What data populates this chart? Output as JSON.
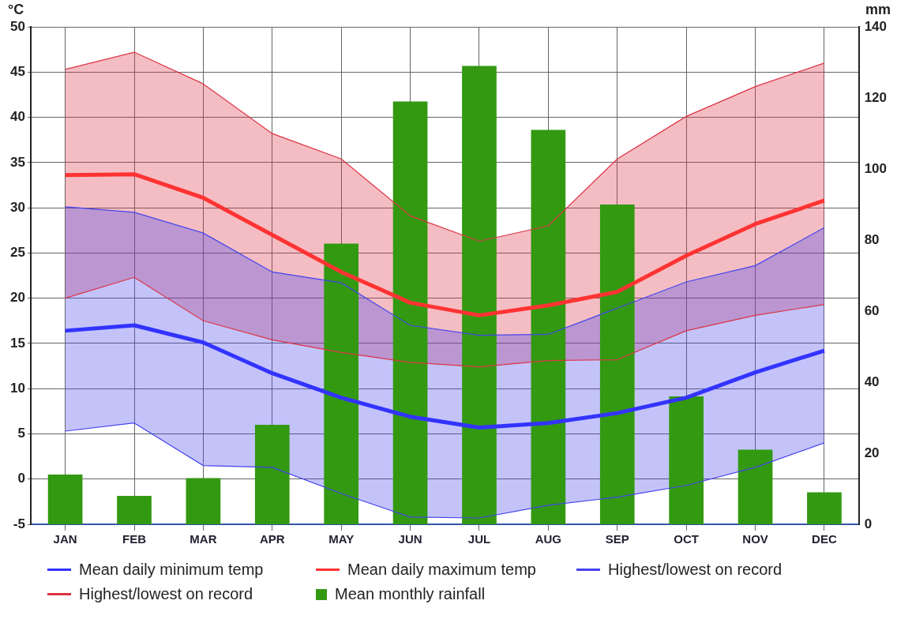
{
  "chart_data": {
    "type": "line",
    "ylabel": "°C",
    "y2label": "mm",
    "categories": [
      "JAN",
      "FEB",
      "MAR",
      "APR",
      "MAY",
      "JUN",
      "JUL",
      "AUG",
      "SEP",
      "OCT",
      "NOV",
      "DEC"
    ],
    "series": [
      {
        "name": "Mean daily minimum temp",
        "color": "#3333ff",
        "values": [
          16.4,
          17.0,
          15.1,
          11.7,
          9.0,
          6.9,
          5.7,
          6.2,
          7.3,
          9.0,
          11.8,
          14.2
        ]
      },
      {
        "name": "Mean daily maximum temp",
        "color": "#ff3333",
        "values": [
          33.6,
          33.7,
          31.1,
          27.0,
          22.9,
          19.5,
          18.1,
          19.2,
          20.7,
          24.7,
          28.2,
          30.8
        ]
      },
      {
        "name": "Highest/lowest on record",
        "color": "#4444ee",
        "type": "line",
        "lower": [
          5.3,
          6.2,
          1.5,
          1.3,
          -1.6,
          -4.2,
          -4.3,
          -2.9,
          -2.0,
          -0.7,
          1.3,
          4.0
        ],
        "upper": [
          30.1,
          29.5,
          27.2,
          22.9,
          21.7,
          17.0,
          15.9,
          16.0,
          18.9,
          21.8,
          23.6,
          27.8
        ],
        "values": [
          30.1,
          29.5,
          27.2,
          22.9,
          21.7,
          17.0,
          15.9,
          16.0,
          18.9,
          21.8,
          23.6,
          27.8
        ]
      },
      {
        "name": "Highest/lowest on record",
        "color": "#dd3344",
        "type": "line",
        "lower": [
          20.0,
          22.3,
          17.5,
          15.4,
          14.0,
          12.9,
          12.4,
          13.1,
          13.2,
          16.4,
          18.1,
          19.3
        ],
        "upper": [
          45.3,
          47.2,
          43.7,
          38.2,
          35.4,
          29.1,
          26.3,
          28.0,
          35.4,
          40.1,
          43.4,
          46.0
        ],
        "values": [
          45.3,
          47.2,
          43.7,
          38.2,
          35.4,
          29.1,
          26.3,
          28.0,
          35.4,
          40.1,
          43.4,
          46.0
        ]
      },
      {
        "color": "#4444ee",
        "type": "line",
        "values": [
          5.3,
          6.2,
          1.5,
          1.3,
          -1.6,
          -4.2,
          -4.3,
          -2.9,
          -2.0,
          -0.7,
          1.3,
          4.0
        ]
      },
      {
        "color": "#dd3344",
        "type": "line",
        "values": [
          20.0,
          22.3,
          17.5,
          15.4,
          14.0,
          12.9,
          12.4,
          13.1,
          13.2,
          16.4,
          18.1,
          19.3
        ]
      },
      {
        "name": "Mean monthly rainfall",
        "color": "#339911",
        "type": "bar",
        "axis": "y2",
        "values": [
          14,
          8,
          13,
          28,
          79,
          119,
          129,
          111,
          90,
          36,
          21,
          9
        ]
      }
    ],
    "ylim": [
      -5,
      50
    ],
    "yticks": [
      -5,
      0,
      5,
      10,
      15,
      20,
      25,
      30,
      35,
      40,
      45,
      50
    ],
    "y2lim": [
      0,
      140
    ],
    "y2ticks": [
      0,
      20,
      40,
      60,
      80,
      100,
      120,
      140
    ],
    "grid": true,
    "legend": "bottom",
    "marker": "none",
    "line_style": "solid"
  }
}
